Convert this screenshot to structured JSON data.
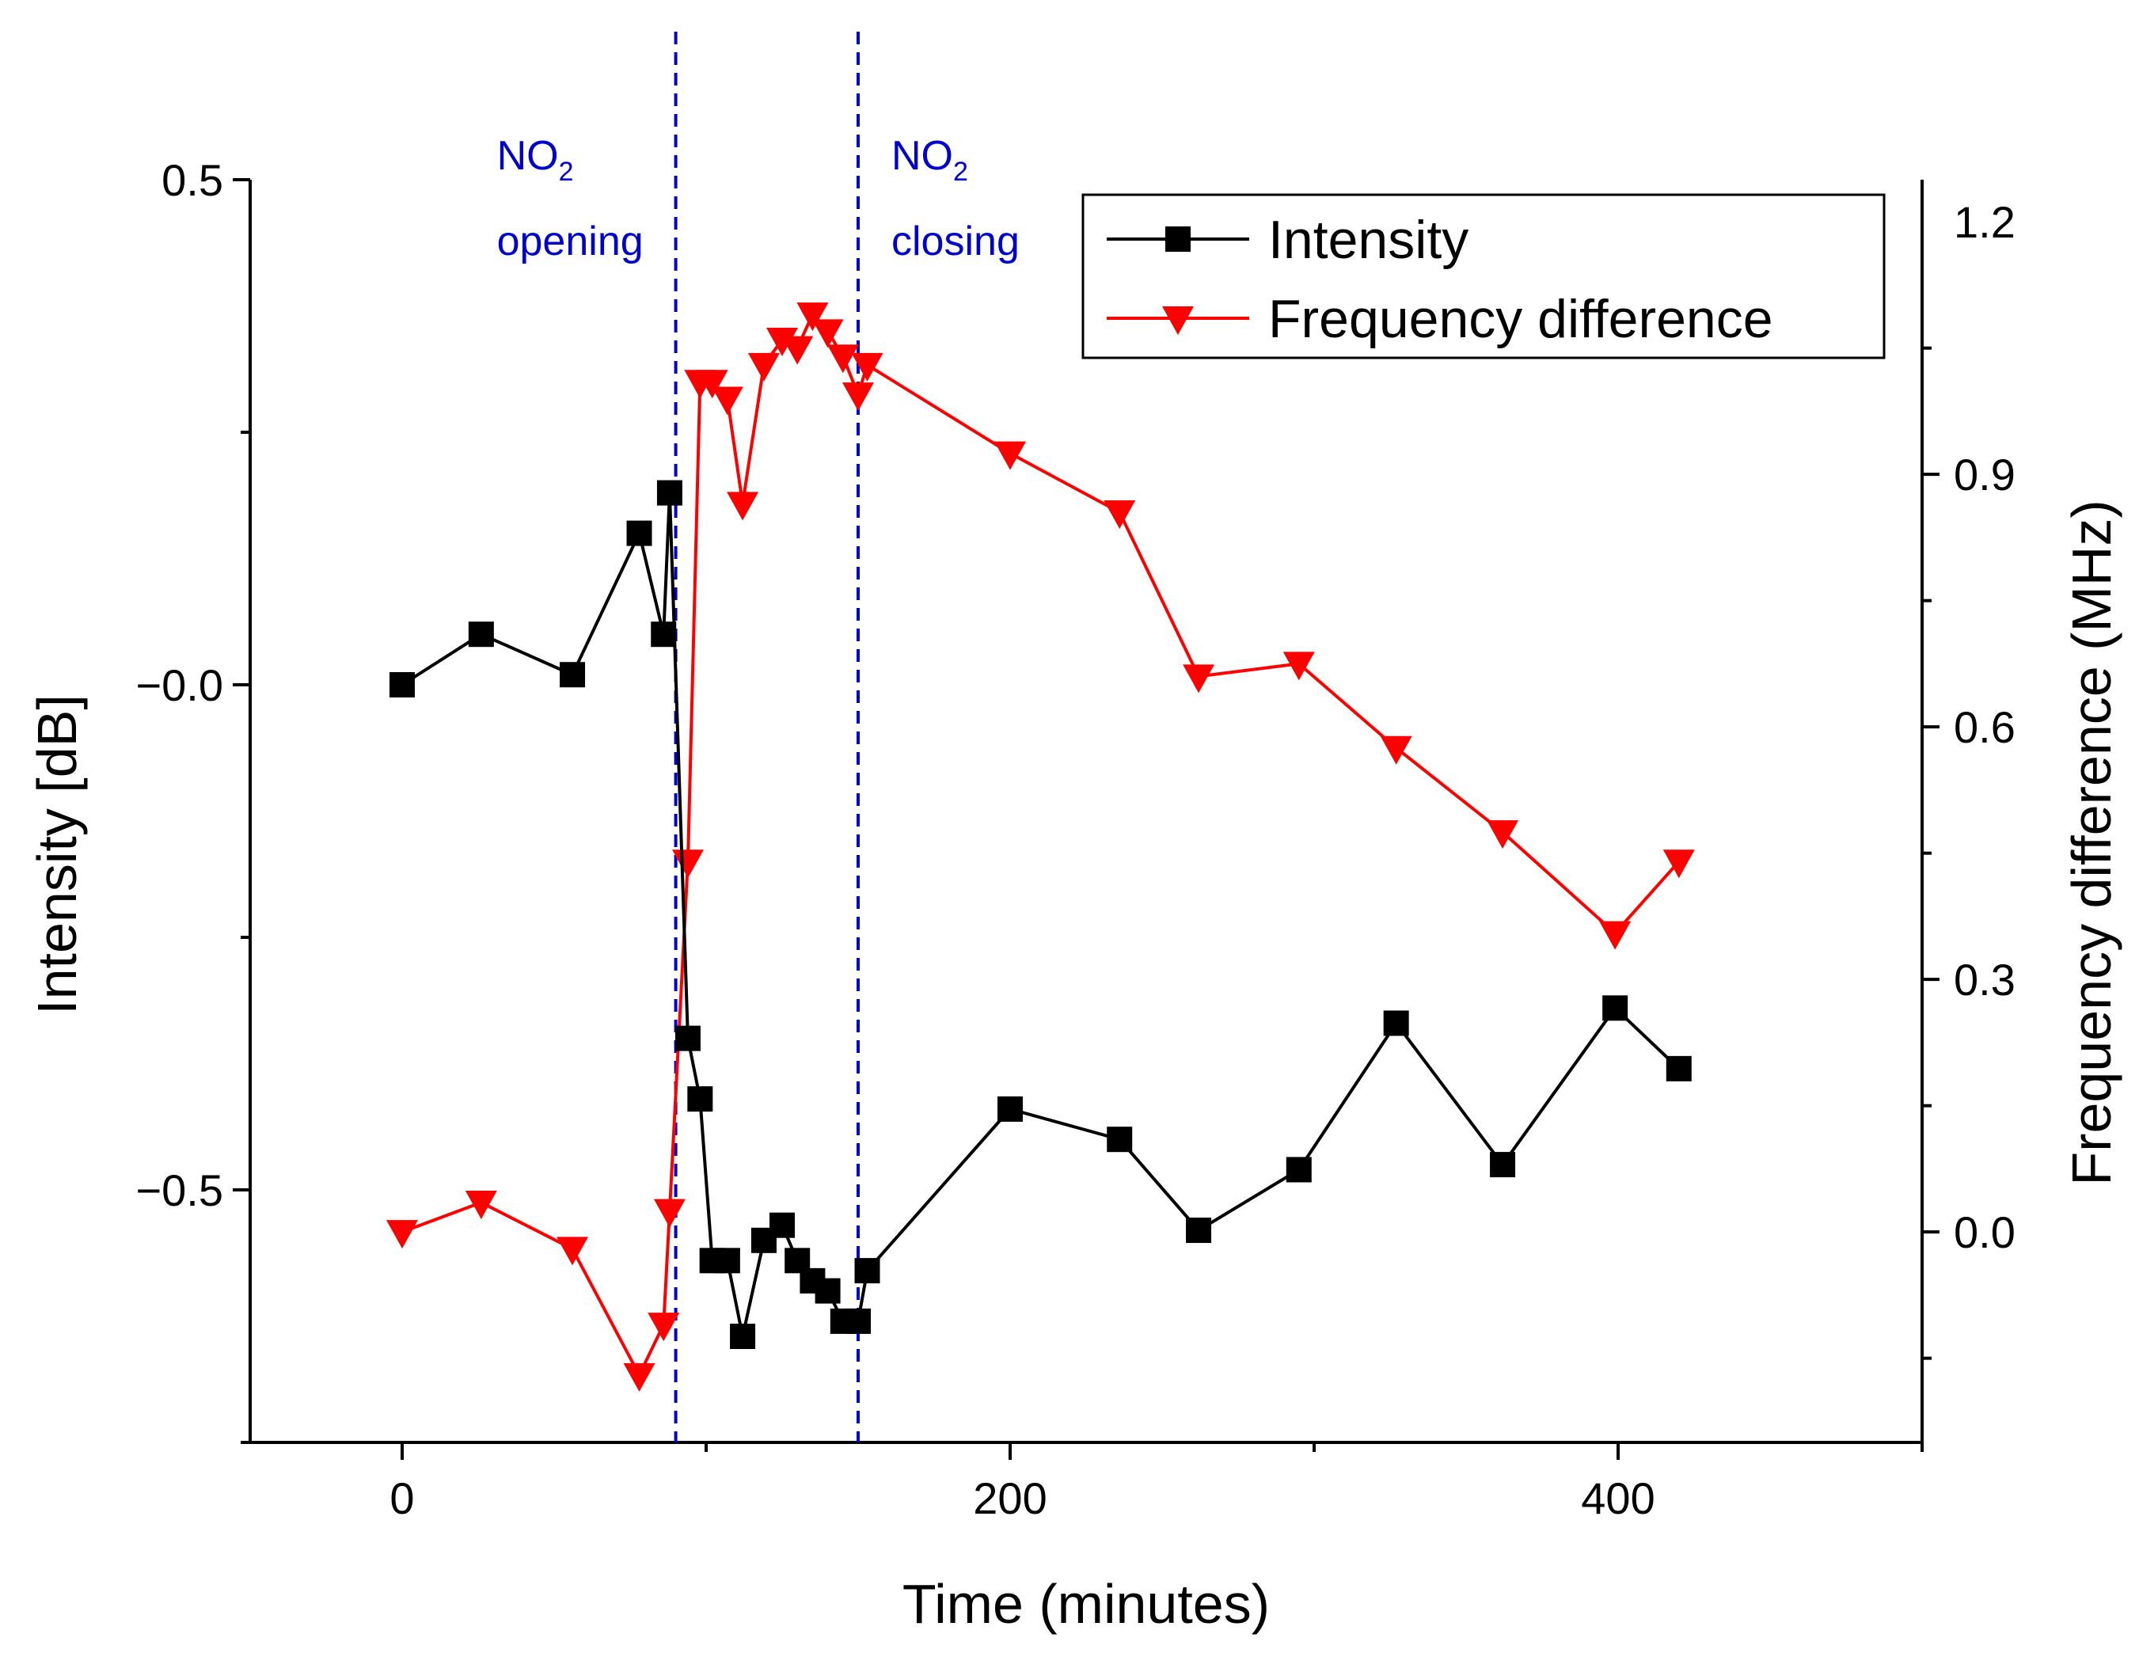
{
  "chart_data": {
    "type": "line",
    "title": "",
    "xlabel": "Time (minutes)",
    "ylabel_left": "Intensity [dB]",
    "ylabel_right": "Frequency difference (MHz)",
    "xlim": [
      -50,
      500
    ],
    "ylim_left": [
      -0.75,
      0.5
    ],
    "ylim_right": [
      -0.25,
      1.25
    ],
    "x_ticks": [
      {
        "value": 0,
        "label": "0"
      },
      {
        "value": 200,
        "label": "200"
      },
      {
        "value": 400,
        "label": "400"
      }
    ],
    "y_left_ticks": [
      {
        "value": 0.5,
        "label": "0.5"
      },
      {
        "value": 0.0,
        "label": "−0.0"
      },
      {
        "value": -0.5,
        "label": "−0.5"
      }
    ],
    "y_right_ticks": [
      {
        "value": 1.2,
        "label": "1.2"
      },
      {
        "value": 0.9,
        "label": "0.9"
      },
      {
        "value": 0.6,
        "label": "0.6"
      },
      {
        "value": 0.3,
        "label": "0.3"
      },
      {
        "value": 0.0,
        "label": "0.0"
      }
    ],
    "series": [
      {
        "name": "Intensity",
        "axis": "left",
        "color": "#000000",
        "marker": "square",
        "x": [
          0,
          26,
          56,
          78,
          86,
          88,
          94,
          98,
          102,
          107,
          112,
          119,
          125,
          130,
          135,
          140,
          145,
          150,
          153,
          200,
          236,
          262,
          295,
          327,
          362,
          399,
          420
        ],
        "y": [
          0.0,
          0.05,
          0.01,
          0.15,
          0.05,
          0.19,
          -0.35,
          -0.41,
          -0.57,
          -0.57,
          -0.645,
          -0.55,
          -0.535,
          -0.57,
          -0.59,
          -0.6,
          -0.63,
          -0.63,
          -0.58,
          -0.42,
          -0.45,
          -0.54,
          -0.48,
          -0.335,
          -0.475,
          -0.32,
          -0.38
        ]
      },
      {
        "name": "Frequency difference",
        "axis": "right",
        "color": "#ff0000",
        "marker": "triangle-down",
        "x": [
          0,
          26,
          56,
          78,
          86,
          88,
          94,
          98,
          102,
          107,
          112,
          119,
          125,
          130,
          135,
          140,
          145,
          150,
          153,
          200,
          236,
          262,
          295,
          327,
          362,
          399,
          420
        ],
        "y": [
          0.0,
          0.035,
          -0.02,
          -0.17,
          -0.11,
          0.025,
          0.44,
          1.01,
          1.01,
          0.99,
          0.865,
          1.03,
          1.06,
          1.05,
          1.09,
          1.07,
          1.04,
          0.995,
          1.03,
          0.925,
          0.855,
          0.66,
          0.675,
          0.575,
          0.475,
          0.355,
          0.44
        ]
      }
    ],
    "vlines": [
      {
        "x": 90,
        "color": "#0000cc",
        "label_main": "NO",
        "label_sub": "2",
        "label_line2": "opening"
      },
      {
        "x": 150,
        "color": "#0000cc",
        "label_main": "NO",
        "label_sub": "2",
        "label_line2": "closing"
      }
    ],
    "legend": {
      "position": "top-right",
      "entries": [
        "Intensity",
        "Frequency difference"
      ]
    },
    "grid": false
  }
}
